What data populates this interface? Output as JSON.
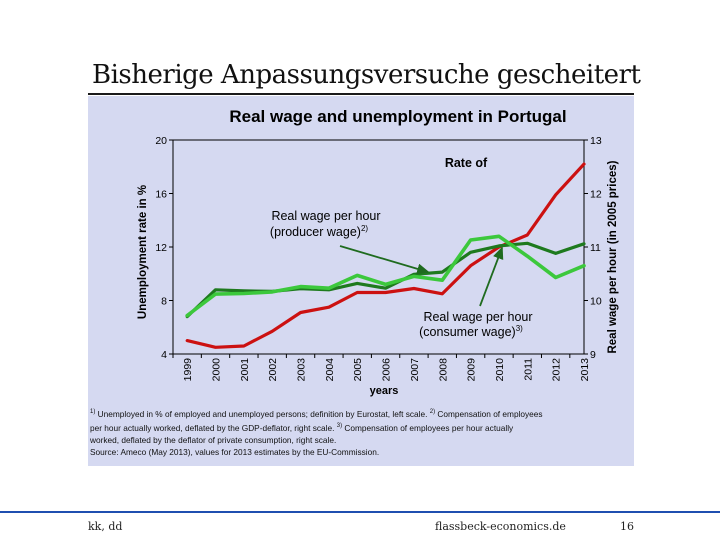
{
  "slide": {
    "title": "Bisherige Anpassungsversuche gescheitert",
    "footer_left": "kk, dd",
    "footer_center": "flassbeck-economics.de",
    "page_number": "16"
  },
  "footnotes": {
    "line1_a": "Unemployed in % of employed and unemployed persons; definition by Eurostat, left scale. ",
    "line1_b": "Compensation of employees",
    "line2": "per hour actually worked, deflated by the GDP-deflator, right scale. ",
    "line2_b": "Compensation of employees per hour actually",
    "line3": "worked, deflated by the deflator of private consumption, right scale.",
    "line4": "Source: Ameco (May 2013), values for 2013 estimates by the EU-Commission."
  },
  "colors": {
    "panel": "#d5d9f1",
    "unemployment": "#cc1111",
    "producer_wage": "#1e7a1e",
    "consumer_wage": "#3cc83c",
    "arrow": "#1f6b1f"
  },
  "chart_data": {
    "type": "line",
    "title": "Real wage and unemployment in Portugal",
    "xlabel": "years",
    "ylabel_left": "Unemployment rate in %",
    "ylabel_right": "Real wage per hour (in 2005 prices)",
    "ylim_left": [
      4,
      20
    ],
    "yticks_left": [
      "4",
      "8",
      "12",
      "16",
      "20"
    ],
    "ylim_right": [
      9,
      13
    ],
    "yticks_right": [
      "9",
      "10",
      "11",
      "12",
      "13"
    ],
    "x": [
      "1999",
      "2000",
      "2001",
      "2002",
      "2003",
      "2004",
      "2005",
      "2006",
      "2007",
      "2008",
      "2009",
      "2010",
      "2011",
      "2012",
      "2013"
    ],
    "series": [
      {
        "key": "unemployment",
        "axis": "left",
        "values": [
          5.0,
          4.5,
          4.6,
          5.7,
          7.1,
          7.5,
          8.6,
          8.6,
          8.9,
          8.5,
          10.6,
          12.0,
          12.9,
          15.9,
          18.2
        ]
      },
      {
        "key": "producer_wage",
        "axis": "right",
        "values": [
          9.7,
          10.2,
          10.18,
          10.17,
          10.22,
          10.2,
          10.32,
          10.23,
          10.49,
          10.53,
          10.9,
          11.02,
          11.07,
          10.88,
          11.06
        ]
      },
      {
        "key": "consumer_wage",
        "axis": "right",
        "values": [
          9.72,
          10.12,
          10.13,
          10.16,
          10.26,
          10.23,
          10.47,
          10.3,
          10.45,
          10.38,
          11.13,
          11.2,
          10.83,
          10.43,
          10.65
        ]
      }
    ],
    "annotations": {
      "rate_of": "Rate of",
      "producer_a": "Real wage per hour",
      "producer_b": "(producer wage)",
      "producer_sup": "2)",
      "consumer_a": "Real wage per hour",
      "consumer_b": "(consumer wage)",
      "consumer_sup": "3)"
    },
    "grid": false,
    "legend": "none"
  }
}
